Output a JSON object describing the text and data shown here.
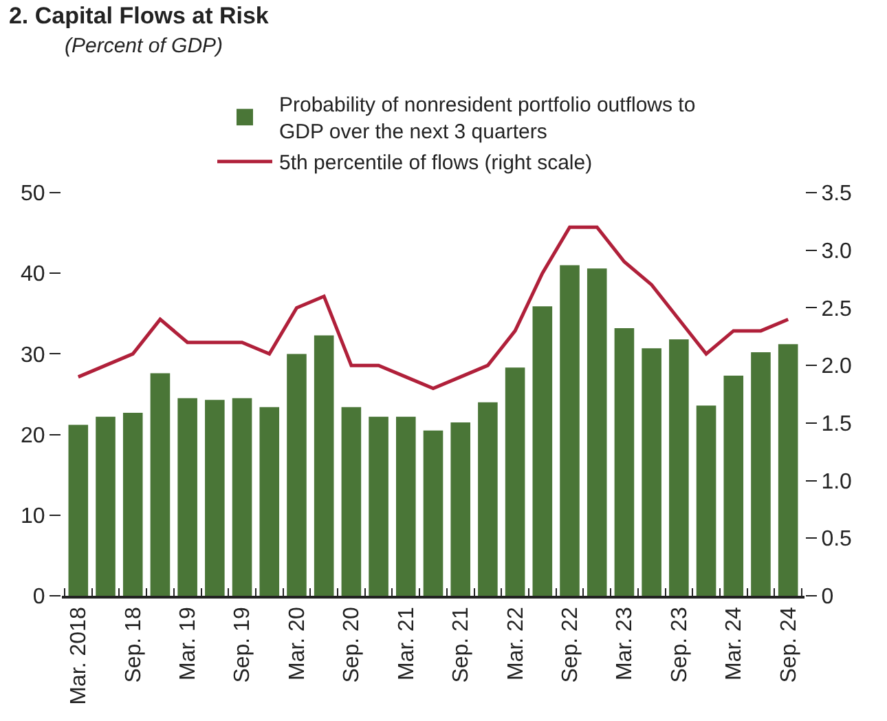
{
  "chart_data": {
    "type": "bar",
    "title": "2. Capital Flows at Risk",
    "subtitle": "(Percent of GDP)",
    "categories": [
      "Mar. 2018",
      null,
      "Sep. 18",
      null,
      "Mar. 19",
      null,
      "Sep. 19",
      null,
      "Mar. 20",
      null,
      "Sep. 20",
      null,
      "Mar. 21",
      null,
      "Sep. 21",
      null,
      "Mar. 22",
      null,
      "Sep. 22",
      null,
      "Mar. 23",
      null,
      "Sep. 23",
      null,
      "Mar. 24",
      null,
      "Sep. 24"
    ],
    "series": [
      {
        "name": "Probability of nonresident portfolio outflows to GDP over the next 3 quarters",
        "color": "#4a7637",
        "values": [
          21.2,
          22.2,
          22.7,
          27.6,
          24.5,
          24.3,
          24.5,
          23.4,
          30.0,
          32.3,
          23.4,
          22.2,
          22.2,
          20.5,
          21.5,
          24.0,
          28.3,
          35.9,
          41.0,
          40.6,
          33.2,
          30.7,
          31.8,
          23.6,
          27.3,
          30.2,
          31.2
        ]
      },
      {
        "name": "5th percentile of flows (right scale)",
        "type": "line",
        "axis": "y2",
        "color": "#b0203a",
        "values": [
          1.9,
          2.0,
          2.1,
          2.4,
          2.2,
          2.2,
          2.2,
          2.1,
          2.5,
          2.6,
          2.0,
          2.0,
          1.9,
          1.8,
          1.9,
          2.0,
          2.3,
          2.8,
          3.2,
          3.2,
          2.9,
          2.7,
          2.4,
          2.1,
          2.3,
          2.3,
          2.4
        ]
      }
    ],
    "ylim": [
      0,
      50
    ],
    "yticks": [
      0,
      10,
      20,
      30,
      40,
      50
    ],
    "y2lim": [
      0,
      3.5
    ],
    "y2ticks": [
      0,
      {
        "value": 0.5,
        "label": "0.5"
      },
      {
        "value": 1,
        "label": "1.0"
      },
      {
        "value": 1.5,
        "label": "1.5"
      },
      {
        "value": 2,
        "label": "2.0"
      },
      {
        "value": 2.5,
        "label": "2.5"
      },
      {
        "value": 3,
        "label": "3.0"
      },
      {
        "value": 3.5,
        "label": "3.5"
      }
    ],
    "legend": "top",
    "marker": "none",
    "line_style": "solid"
  }
}
